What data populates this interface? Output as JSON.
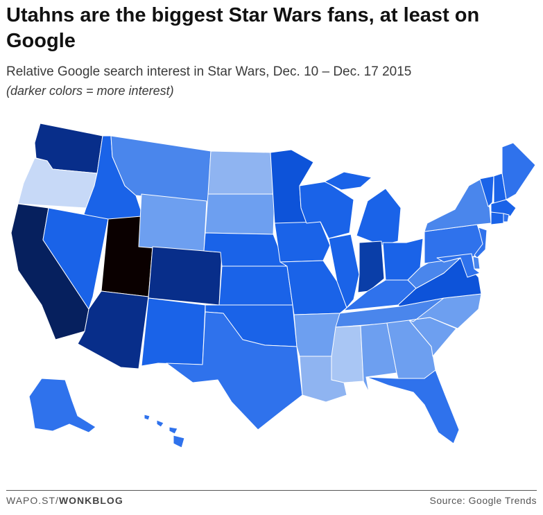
{
  "header": {
    "title": "Utahns are the biggest Star Wars fans, at least on Google",
    "subtitle": "Relative Google search interest in Star Wars, Dec. 10 – Dec. 17 2015",
    "note": "(darker colors = more interest)"
  },
  "footer": {
    "credit_prefix": "WAPO.ST/",
    "credit_brand": "WONKBLOG",
    "source": "Source: Google Trends"
  },
  "palette": {
    "lightest": "#c7d9f7",
    "light": "#a9c6f4",
    "light_mid": "#8fb4f1",
    "mid": "#6d9ff0",
    "mid_blue": "#4a86ec",
    "blue": "#2f72ec",
    "bright": "#1a63e8",
    "strong": "#0d53d9",
    "dark": "#0a3ea8",
    "darker": "#082e8a",
    "darkest": "#06205e",
    "max": "#0a0000"
  },
  "states": [
    {
      "abbr": "WA",
      "level": "darker"
    },
    {
      "abbr": "OR",
      "level": "lightest"
    },
    {
      "abbr": "CA",
      "level": "darkest"
    },
    {
      "abbr": "ID",
      "level": "bright"
    },
    {
      "abbr": "NV",
      "level": "bright"
    },
    {
      "abbr": "UT",
      "level": "max"
    },
    {
      "abbr": "AZ",
      "level": "darker"
    },
    {
      "abbr": "MT",
      "level": "mid_blue"
    },
    {
      "abbr": "WY",
      "level": "mid"
    },
    {
      "abbr": "CO",
      "level": "darker"
    },
    {
      "abbr": "NM",
      "level": "bright"
    },
    {
      "abbr": "ND",
      "level": "light_mid"
    },
    {
      "abbr": "SD",
      "level": "mid"
    },
    {
      "abbr": "NE",
      "level": "bright"
    },
    {
      "abbr": "KS",
      "level": "bright"
    },
    {
      "abbr": "OK",
      "level": "bright"
    },
    {
      "abbr": "TX",
      "level": "blue"
    },
    {
      "abbr": "MN",
      "level": "strong"
    },
    {
      "abbr": "IA",
      "level": "bright"
    },
    {
      "abbr": "MO",
      "level": "bright"
    },
    {
      "abbr": "AR",
      "level": "mid"
    },
    {
      "abbr": "LA",
      "level": "light_mid"
    },
    {
      "abbr": "WI",
      "level": "bright"
    },
    {
      "abbr": "IL",
      "level": "bright"
    },
    {
      "abbr": "MI",
      "level": "bright"
    },
    {
      "abbr": "IN",
      "level": "dark"
    },
    {
      "abbr": "OH",
      "level": "bright"
    },
    {
      "abbr": "KY",
      "level": "blue"
    },
    {
      "abbr": "TN",
      "level": "mid_blue"
    },
    {
      "abbr": "MS",
      "level": "light"
    },
    {
      "abbr": "AL",
      "level": "mid"
    },
    {
      "abbr": "GA",
      "level": "mid"
    },
    {
      "abbr": "FL",
      "level": "blue"
    },
    {
      "abbr": "SC",
      "level": "mid"
    },
    {
      "abbr": "NC",
      "level": "mid"
    },
    {
      "abbr": "VA",
      "level": "strong"
    },
    {
      "abbr": "WV",
      "level": "mid_blue"
    },
    {
      "abbr": "PA",
      "level": "blue"
    },
    {
      "abbr": "NY",
      "level": "mid_blue"
    },
    {
      "abbr": "VT",
      "level": "bright"
    },
    {
      "abbr": "NH",
      "level": "bright"
    },
    {
      "abbr": "ME",
      "level": "blue"
    },
    {
      "abbr": "MA",
      "level": "bright"
    },
    {
      "abbr": "CT",
      "level": "bright"
    },
    {
      "abbr": "RI",
      "level": "blue"
    },
    {
      "abbr": "NJ",
      "level": "blue"
    },
    {
      "abbr": "DE",
      "level": "mid_blue"
    },
    {
      "abbr": "MD",
      "level": "blue"
    },
    {
      "abbr": "AK",
      "level": "blue"
    },
    {
      "abbr": "HI",
      "level": "blue"
    }
  ]
}
